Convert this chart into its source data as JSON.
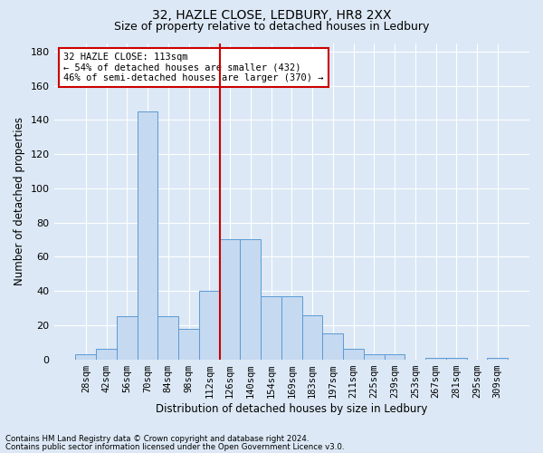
{
  "title1": "32, HAZLE CLOSE, LEDBURY, HR8 2XX",
  "title2": "Size of property relative to detached houses in Ledbury",
  "xlabel": "Distribution of detached houses by size in Ledbury",
  "ylabel": "Number of detached properties",
  "footnote1": "Contains HM Land Registry data © Crown copyright and database right 2024.",
  "footnote2": "Contains public sector information licensed under the Open Government Licence v3.0.",
  "categories": [
    "28sqm",
    "42sqm",
    "56sqm",
    "70sqm",
    "84sqm",
    "98sqm",
    "112sqm",
    "126sqm",
    "140sqm",
    "154sqm",
    "169sqm",
    "183sqm",
    "197sqm",
    "211sqm",
    "225sqm",
    "239sqm",
    "253sqm",
    "267sqm",
    "281sqm",
    "295sqm",
    "309sqm"
  ],
  "values": [
    3,
    6,
    25,
    145,
    25,
    18,
    40,
    70,
    70,
    37,
    37,
    26,
    15,
    6,
    3,
    3,
    0,
    1,
    1,
    0,
    1
  ],
  "bar_color": "#c5d9f0",
  "bar_edge_color": "#5b9bd5",
  "vline_index": 6.5,
  "vline_color": "#cc0000",
  "annotation_text": "32 HAZLE CLOSE: 113sqm\n← 54% of detached houses are smaller (432)\n46% of semi-detached houses are larger (370) →",
  "annotation_box_color": "#ffffff",
  "annotation_box_edge": "#cc0000",
  "ylim": [
    0,
    185
  ],
  "yticks": [
    0,
    20,
    40,
    60,
    80,
    100,
    120,
    140,
    160,
    180
  ],
  "bg_color": "#dce8f5",
  "grid_color": "#ffffff",
  "title1_fontsize": 10,
  "title2_fontsize": 9,
  "axis_fontsize": 8.5,
  "tick_fontsize": 7.5
}
